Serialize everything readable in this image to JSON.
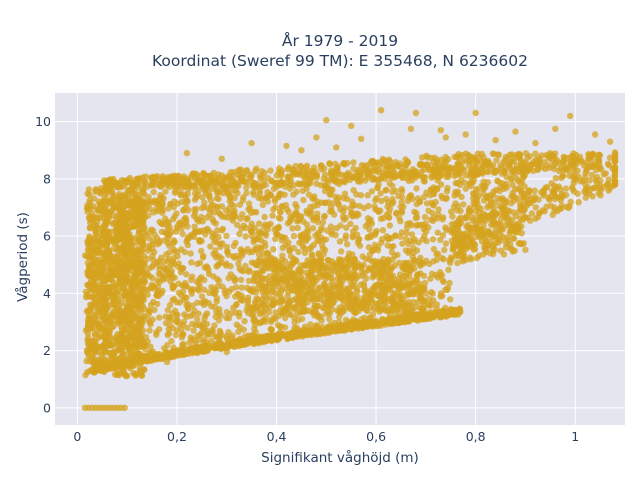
{
  "chart_data": {
    "type": "scatter",
    "title": "År 1979 - 2019",
    "subtitle": "Koordinat (Sweref 99 TM): E 355468, N 6236602",
    "xlabel": "Signifikant våghöjd (m)",
    "ylabel": "Vågperiod (s)",
    "xlim": [
      -0.045,
      1.1
    ],
    "ylim": [
      -0.6,
      11
    ],
    "x_ticks": [
      {
        "value": 0,
        "label": "0"
      },
      {
        "value": 0.2,
        "label": "0,2"
      },
      {
        "value": 0.4,
        "label": "0,4"
      },
      {
        "value": 0.6,
        "label": "0,6"
      },
      {
        "value": 0.8,
        "label": "0,8"
      },
      {
        "value": 1,
        "label": "1"
      }
    ],
    "y_ticks": [
      {
        "value": 0,
        "label": "0"
      },
      {
        "value": 2,
        "label": "2"
      },
      {
        "value": 4,
        "label": "4"
      },
      {
        "value": 6,
        "label": "6"
      },
      {
        "value": 8,
        "label": "8"
      },
      {
        "value": 10,
        "label": "10"
      }
    ],
    "grid": true,
    "marker_color": "#d4a31f",
    "background_color": "#e5e5f0",
    "outliers": [
      [
        0.61,
        10.4
      ],
      [
        0.68,
        10.3
      ],
      [
        0.8,
        10.3
      ],
      [
        0.99,
        10.2
      ],
      [
        0.5,
        10.05
      ],
      [
        0.55,
        9.85
      ],
      [
        0.67,
        9.75
      ],
      [
        0.73,
        9.7
      ],
      [
        0.96,
        9.75
      ],
      [
        0.78,
        9.55
      ],
      [
        0.88,
        9.65
      ],
      [
        1.04,
        9.55
      ],
      [
        0.35,
        9.25
      ],
      [
        0.48,
        9.45
      ],
      [
        0.57,
        9.4
      ],
      [
        0.45,
        9.0
      ],
      [
        1.07,
        9.3
      ],
      [
        0.29,
        8.7
      ],
      [
        0.22,
        8.9
      ],
      [
        0.42,
        9.15
      ],
      [
        0.52,
        9.1
      ],
      [
        0.74,
        9.45
      ],
      [
        0.84,
        9.35
      ],
      [
        0.92,
        9.25
      ],
      [
        0.04,
        3.7
      ],
      [
        0.03,
        2.9
      ],
      [
        0.03,
        1.3
      ],
      [
        0.02,
        1.25
      ],
      [
        0.05,
        1.45
      ],
      [
        0.1,
        7.9
      ],
      [
        0.06,
        6.1
      ],
      [
        0.13,
        6.75
      ],
      [
        0.15,
        7.2
      ],
      [
        0.44,
        7.55
      ],
      [
        0.55,
        3.55
      ],
      [
        0.62,
        3.4
      ],
      [
        0.75,
        3.45
      ],
      [
        0.48,
        2.6
      ],
      [
        0.3,
        1.95
      ],
      [
        0.18,
        1.6
      ]
    ],
    "zero_period_cluster": {
      "x_min": 0.015,
      "x_max": 0.095,
      "y": 0
    }
  }
}
